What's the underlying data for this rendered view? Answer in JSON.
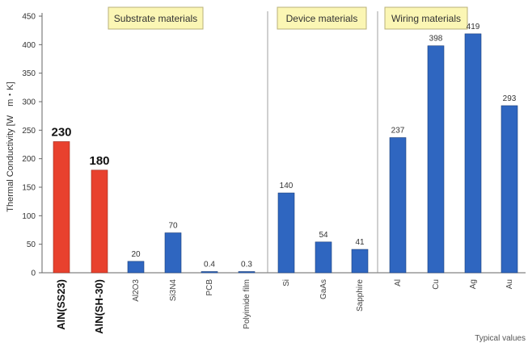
{
  "chart_data": {
    "type": "bar",
    "title": "",
    "ylabel": "Thermal Conductivity [W　m・K]",
    "xlabel": "",
    "ylim": [
      0,
      450
    ],
    "yticks": [
      0,
      50,
      100,
      150,
      200,
      250,
      300,
      350,
      400,
      450
    ],
    "grid": false,
    "footnote": "Typical values",
    "categories": [
      "AlN(SS23)",
      "AlN(SH-30)",
      "Al2O3",
      "Si3N4",
      "PCB",
      "Polyimide film",
      "Si",
      "GaAs",
      "Sapphire",
      "Al",
      "Cu",
      "Ag",
      "Au"
    ],
    "values": [
      230,
      180,
      20,
      70,
      0.4,
      0.3,
      140,
      54,
      41,
      237,
      398,
      419,
      293
    ],
    "value_labels": [
      "230",
      "180",
      "20",
      "70",
      "0.4",
      "0.3",
      "140",
      "54",
      "41",
      "237",
      "398",
      "419",
      "293"
    ],
    "highlighted": [
      true,
      true,
      false,
      false,
      false,
      false,
      false,
      false,
      false,
      false,
      false,
      false,
      false
    ],
    "colors": {
      "highlight": "#e8412e",
      "default": "#2f66c0",
      "group_box": "#fbf6b4",
      "group_border": "#b9b07a"
    },
    "groups": [
      {
        "label": "Substrate materials",
        "from": 0,
        "to": 5
      },
      {
        "label": "Device materials",
        "from": 6,
        "to": 8
      },
      {
        "label": "Wiring materials",
        "from": 9,
        "to": 12
      }
    ]
  }
}
